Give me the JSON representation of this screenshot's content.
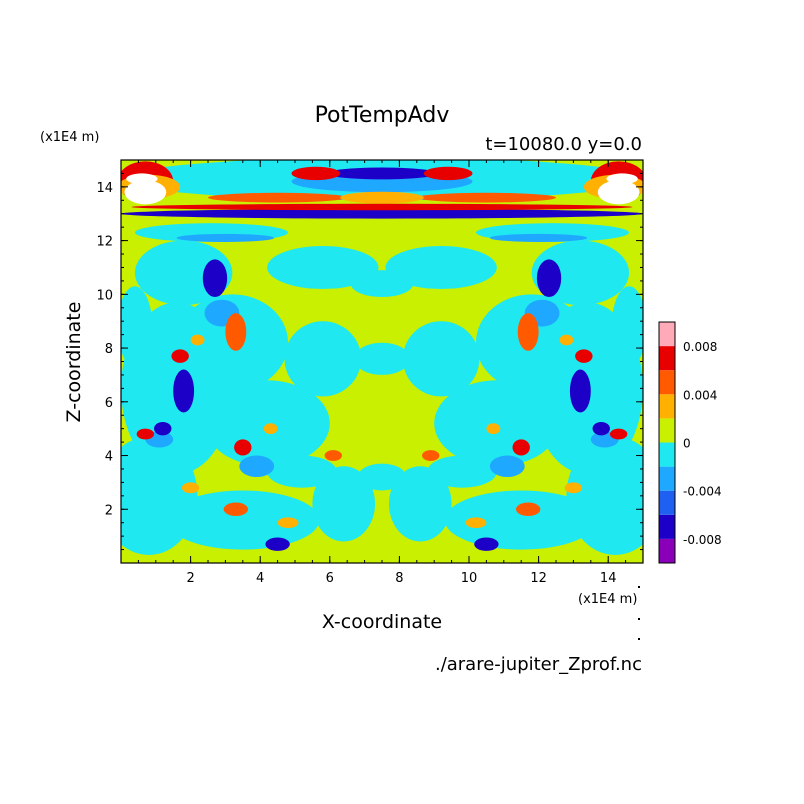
{
  "chart_data": {
    "type": "heatmap",
    "title": "PotTempAdv",
    "subtitle": "t=10080.0 y=0.0",
    "xlabel": "X-coordinate",
    "ylabel": "Z-coordinate",
    "x_unit": "(x1E4 m)",
    "y_unit": "(x1E4 m)",
    "xlim": [
      0,
      15
    ],
    "ylim": [
      0,
      15
    ],
    "x_ticks": [
      2,
      4,
      6,
      8,
      10,
      12,
      14
    ],
    "y_ticks": [
      2,
      4,
      6,
      8,
      10,
      12,
      14
    ],
    "x_tick_labels": [
      "2",
      "4",
      "6",
      "8",
      "10",
      "12",
      "14"
    ],
    "y_tick_labels": [
      "2",
      "4",
      "6",
      "8",
      "10",
      "12",
      "14"
    ],
    "colorbar": {
      "levels": [
        -0.01,
        -0.008,
        -0.006,
        -0.004,
        -0.002,
        0,
        0.002,
        0.004,
        0.006,
        0.008,
        0.01
      ],
      "colors": [
        "#8a00b8",
        "#1d00c8",
        "#2060f0",
        "#1ea8ff",
        "#20e8f0",
        "#c8f000",
        "#ffb000",
        "#ff5a00",
        "#e80000",
        "#ffaab8"
      ],
      "tick_values": [
        -0.008,
        -0.004,
        0,
        0.004,
        0.008
      ],
      "tick_labels": [
        "-0.008",
        "-0.004",
        "0",
        "0.004",
        "0.008"
      ]
    },
    "field_colors": {
      "background": "#c8f000",
      "low": "#20e8f0",
      "mid_low": "#1ea8ff",
      "strong_low": "#1d00c8",
      "mid_high": "#ffb000",
      "high": "#ff5a00",
      "strong_high": "#e80000",
      "peak": "#ffffff"
    },
    "grid": false,
    "legend": "colorbar right"
  },
  "footer": {
    "filename": "./arare-jupiter_Zprof.nc"
  }
}
